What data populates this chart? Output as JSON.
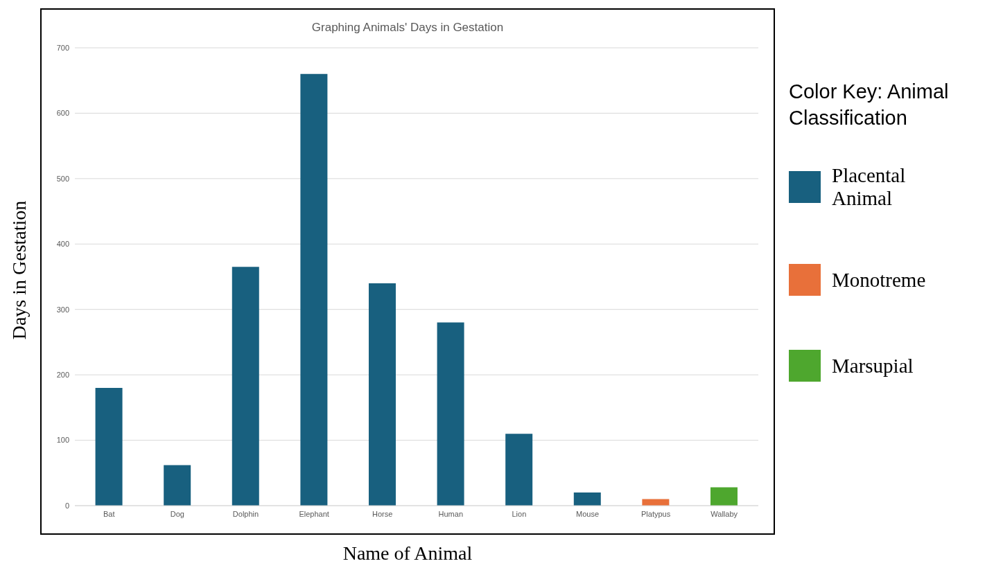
{
  "chart_data": {
    "type": "bar",
    "title": "Graphing Animals' Days in Gestation",
    "xlabel": "Name of Animal",
    "ylabel": "Days in Gestation",
    "legend_title": "Color Key: Animal Classification",
    "categories": [
      "Bat",
      "Dog",
      "Dolphin",
      "Elephant",
      "Horse",
      "Human",
      "Lion",
      "Mouse",
      "Platypus",
      "Wallaby"
    ],
    "series": [
      {
        "name": "Placental Animal",
        "color": "#18607f",
        "values": [
          180,
          62,
          365,
          660,
          340,
          280,
          110,
          20,
          null,
          null
        ]
      },
      {
        "name": "Monotreme",
        "color": "#e8703a",
        "values": [
          null,
          null,
          null,
          null,
          null,
          null,
          null,
          null,
          10,
          null
        ]
      },
      {
        "name": "Marsupial",
        "color": "#4ea72e",
        "values": [
          null,
          null,
          null,
          null,
          null,
          null,
          null,
          null,
          null,
          28
        ]
      }
    ],
    "stacked": true,
    "ylim": [
      0,
      700
    ],
    "yticks": [
      0,
      100,
      200,
      300,
      400,
      500,
      600,
      700
    ],
    "grid": "y",
    "legend": "right"
  }
}
